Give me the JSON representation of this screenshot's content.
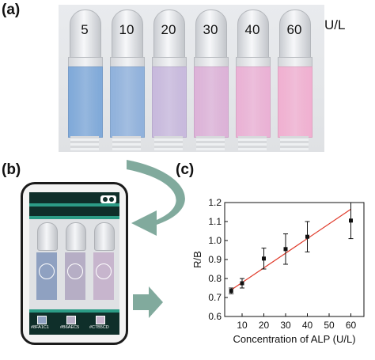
{
  "panels": {
    "a": {
      "label": "(a)",
      "unit": "U/L",
      "vials": [
        {
          "label": "5",
          "color": "#7fa9d9"
        },
        {
          "label": "10",
          "color": "#8fb1dc"
        },
        {
          "label": "20",
          "color": "#c8b9dd"
        },
        {
          "label": "30",
          "color": "#ddb2d8"
        },
        {
          "label": "40",
          "color": "#ebb1d5"
        },
        {
          "label": "60",
          "color": "#f1b0d1"
        }
      ]
    },
    "b": {
      "label": "(b)",
      "swatches": [
        {
          "code": "#8FA1C1",
          "color": "#8FA1C1"
        },
        {
          "code": "#B6AEC5",
          "color": "#B6AEC5"
        },
        {
          "code": "#C7B5CD",
          "color": "#C7B5CD"
        }
      ],
      "screen_color": "#2c9c86",
      "arrow_color": "#6b9b8c"
    },
    "c": {
      "label": "(c)"
    }
  },
  "chart_data": {
    "type": "scatter",
    "xlabel": "Concentration of ALP (U/L)",
    "ylabel": "R/B",
    "xlim": [
      2,
      66
    ],
    "ylim": [
      0.6,
      1.2
    ],
    "xticks": [
      10,
      20,
      30,
      40,
      50,
      60
    ],
    "yticks": [
      0.6,
      0.7,
      0.8,
      0.9,
      1.0,
      1.1,
      1.2
    ],
    "ytick_labels": [
      "0.6",
      "0.7",
      "0.8",
      "0.9",
      "1.0",
      "1.1",
      "1.2"
    ],
    "series": [
      {
        "x": [
          5,
          10,
          20,
          30,
          40,
          60
        ],
        "y": [
          0.735,
          0.775,
          0.905,
          0.955,
          1.02,
          1.105
        ],
        "err": [
          0.015,
          0.025,
          0.055,
          0.08,
          0.08,
          0.095
        ],
        "color": "#111111"
      }
    ],
    "fit_line": {
      "x": [
        5,
        60
      ],
      "y": [
        0.74,
        1.165
      ],
      "color": "#e03a2a"
    }
  }
}
